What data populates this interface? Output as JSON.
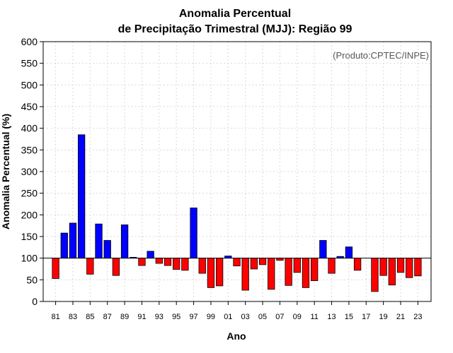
{
  "chart_data": {
    "type": "bar",
    "title": "Anomalia Percentual",
    "subtitle": "de Precipitação Trimestral (MJJ): Região 99",
    "xlabel": "Ano",
    "ylabel": "Anomalia Percentual (%)",
    "credit": "(Produto:CPTEC/INPE)",
    "ylim": [
      0,
      600
    ],
    "yticks": [
      0,
      50,
      100,
      150,
      200,
      250,
      300,
      350,
      400,
      450,
      500,
      550,
      600
    ],
    "baseline": 100,
    "grid": true,
    "colors": {
      "above": "#0000ff",
      "below": "#ff0000"
    },
    "categories": [
      "81",
      "82",
      "83",
      "84",
      "85",
      "86",
      "87",
      "88",
      "89",
      "90",
      "91",
      "92",
      "93",
      "94",
      "95",
      "96",
      "97",
      "98",
      "99",
      "00",
      "01",
      "02",
      "03",
      "04",
      "05",
      "06",
      "07",
      "08",
      "09",
      "10",
      "11",
      "12",
      "13",
      "14",
      "15",
      "16",
      "17",
      "18",
      "19",
      "20",
      "21",
      "22",
      "23"
    ],
    "xtick_labels": [
      "81",
      "83",
      "85",
      "87",
      "89",
      "91",
      "93",
      "95",
      "97",
      "99",
      "01",
      "03",
      "05",
      "07",
      "09",
      "11",
      "13",
      "15",
      "17",
      "19",
      "21",
      "23"
    ],
    "values": [
      53,
      158,
      181,
      385,
      63,
      179,
      141,
      60,
      177,
      102,
      83,
      116,
      88,
      83,
      74,
      72,
      216,
      65,
      32,
      36,
      105,
      82,
      26,
      75,
      85,
      28,
      95,
      37,
      67,
      32,
      48,
      141,
      65,
      104,
      126,
      72,
      100,
      23,
      60,
      38,
      67,
      55,
      59
    ]
  }
}
